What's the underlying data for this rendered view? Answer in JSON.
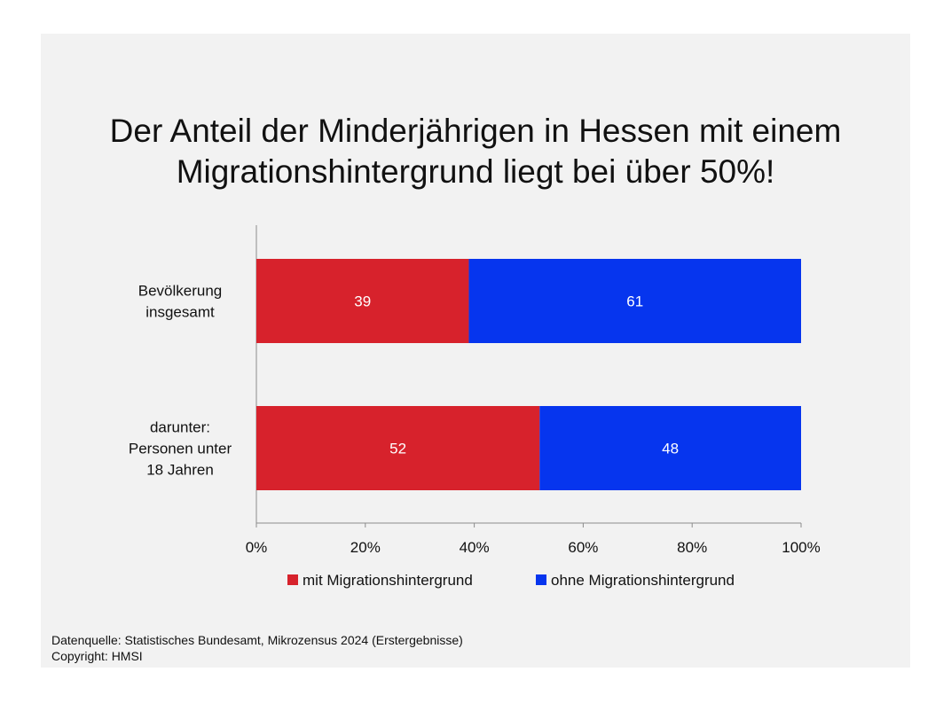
{
  "title_lines": [
    "Der Anteil der Minderjährigen in Hessen mit einem",
    "Migrationshintergrund liegt bei über 50%!"
  ],
  "chart_data": {
    "type": "bar",
    "orientation": "horizontal",
    "stacked": "percent",
    "categories": [
      [
        "Bevölkerung",
        "insgesamt"
      ],
      [
        "darunter:",
        "Personen unter",
        "18 Jahren"
      ]
    ],
    "series": [
      {
        "name": "mit Migrationshintergrund",
        "values": [
          39,
          52
        ],
        "color": "#d7222c"
      },
      {
        "name": "ohne Migrationshintergrund",
        "values": [
          61,
          48
        ],
        "color": "#0635ee"
      }
    ],
    "xlim": [
      0,
      100
    ],
    "xticks": [
      "0%",
      "20%",
      "40%",
      "60%",
      "80%",
      "100%"
    ],
    "legend_position": "bottom",
    "grid": false
  },
  "source_lines": [
    "Datenquelle: Statistisches Bundesamt, Mikrozensus 2024 (Erstergebnisse)",
    "Copyright: HMSI"
  ]
}
